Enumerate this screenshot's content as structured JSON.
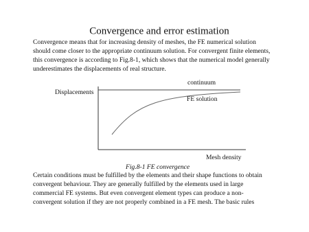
{
  "header": {
    "title": "Convergence  and error estimation"
  },
  "paragraphs": [
    [
      "Convergence means that for increasing density of meshes, the FE numerical solution",
      "should come closer to the appropriate continuum solution. For convergent finite elements,",
      "this convergence is according to Fig.8-1, which shows that the numerical model generally",
      "underestimates  the displacements  of real structure."
    ],
    [
      "Certain conditions must be fulfilled by the elements and their shape functions to obtain",
      "convergent behaviour. They are generally fulfilled by the elements used in large",
      "commercial FE systems. But even convergent element types can produce a non-",
      "convergent solution if they are not properly combined in a FE mesh. The basic rules"
    ]
  ],
  "figure": {
    "y_label": "Displacements",
    "x_label": "Mesh density",
    "continuum_label": "continuum",
    "fe_label": "FE solution",
    "caption": "Fig.8-1 FE convergence"
  }
}
